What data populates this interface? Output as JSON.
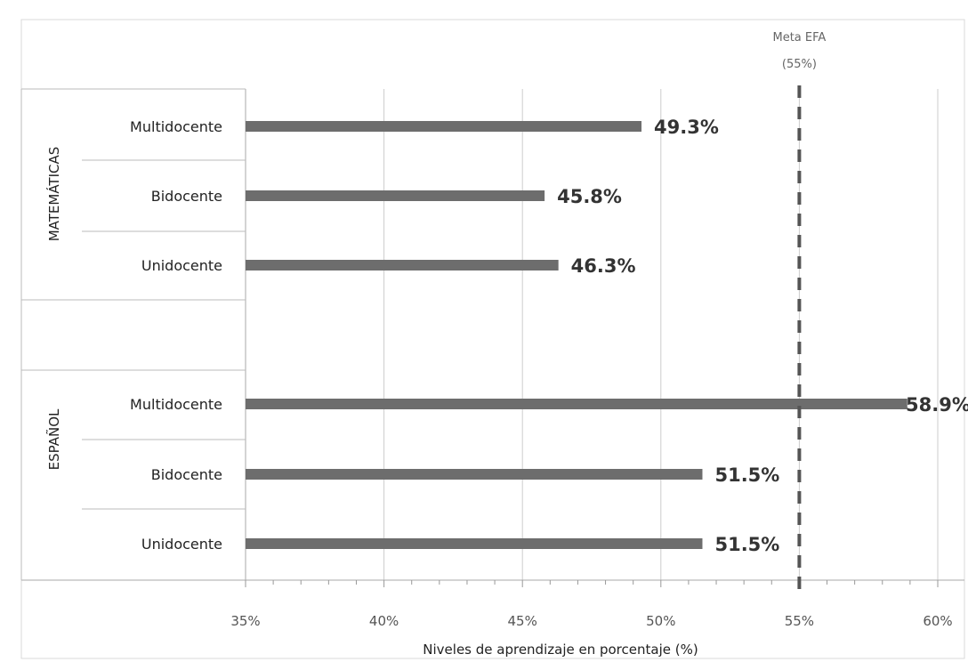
{
  "chart_data": {
    "type": "bar",
    "orientation": "horizontal",
    "xlabel": "Niveles de aprendizaje en porcentaje (%)",
    "xlim": [
      35,
      60
    ],
    "xticks": [
      35,
      40,
      45,
      50,
      55,
      60
    ],
    "xtick_labels": [
      "35%",
      "40%",
      "45%",
      "50%",
      "55%",
      "60%"
    ],
    "grid": true,
    "groups": [
      {
        "name": "MATEMÁTICAS",
        "categories": [
          "Multidocente",
          "Bidocente",
          "Unidocente"
        ],
        "values": [
          49.3,
          45.8,
          46.3
        ],
        "value_labels": [
          "49.3%",
          "45.8%",
          "46.3%"
        ]
      },
      {
        "name": "ESPAÑOL",
        "categories": [
          "Multidocente",
          "Bidocente",
          "Unidocente"
        ],
        "values": [
          58.9,
          51.5,
          51.5
        ],
        "value_labels": [
          "58.9%",
          "51.5%",
          "51.5%"
        ]
      }
    ],
    "reference_line": {
      "label_line1": "Meta EFA",
      "label_line2": "(55%)",
      "value": 55
    },
    "colors": {
      "bar": "#6d6d6d",
      "grid": "#cccccc",
      "target": "#555555"
    }
  }
}
